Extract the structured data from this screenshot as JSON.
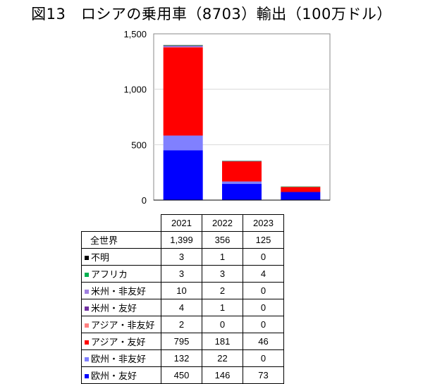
{
  "title": "図13　ロシアの乗用車（8703）輸出（100万ドル）",
  "chart_data": {
    "type": "bar",
    "stacked": true,
    "title": "図13　ロシアの乗用車（8703）輸出（100万ドル）",
    "categories": [
      "2021",
      "2022",
      "2023"
    ],
    "ylim": [
      0,
      1500
    ],
    "yticks": [
      0,
      500,
      1000,
      1500
    ],
    "ytick_labels": [
      "0",
      "500",
      "1,000",
      "1,500"
    ],
    "grid": true,
    "legend": "table-below",
    "total": {
      "name": "全世界",
      "values": [
        "1,399",
        "356",
        "125"
      ]
    },
    "series": [
      {
        "name": "欧州・友好",
        "color": "#0000ff",
        "values": [
          450,
          146,
          73
        ]
      },
      {
        "name": "欧州・非友好",
        "color": "#8080ff",
        "values": [
          132,
          22,
          0
        ]
      },
      {
        "name": "アジア・友好",
        "color": "#ff0000",
        "values": [
          795,
          181,
          46
        ]
      },
      {
        "name": "アジア・非友好",
        "color": "#ff8080",
        "values": [
          2,
          0,
          0
        ]
      },
      {
        "name": "米州・友好",
        "color": "#7030a0",
        "values": [
          4,
          1,
          0
        ]
      },
      {
        "name": "米州・非友好",
        "color": "#a080e0",
        "values": [
          10,
          2,
          0
        ]
      },
      {
        "name": "アフリカ",
        "color": "#00b050",
        "values": [
          3,
          3,
          4
        ]
      },
      {
        "name": "不明",
        "color": "#000000",
        "values": [
          3,
          1,
          0
        ]
      }
    ]
  }
}
